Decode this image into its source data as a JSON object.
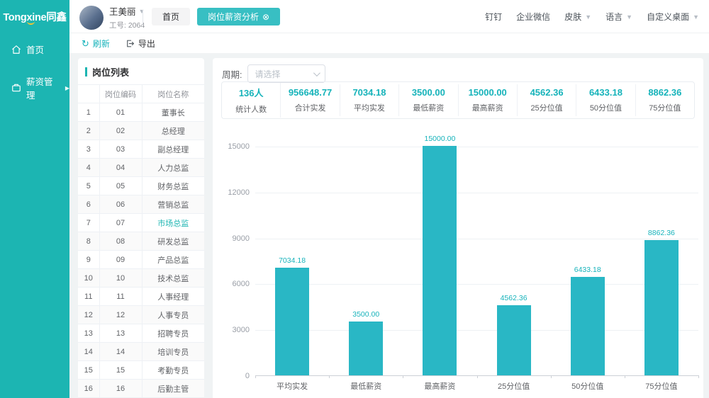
{
  "brand": {
    "logo": "Tongxine同鑫"
  },
  "header": {
    "user": {
      "name": "王美丽",
      "employee_id_label": "工号:",
      "employee_id": "2064"
    },
    "tabs": [
      {
        "name": "home",
        "label": "首页",
        "active": false,
        "closable": false
      },
      {
        "name": "position-salary-analysis",
        "label": "岗位薪资分析",
        "active": true,
        "closable": true
      }
    ],
    "menu": [
      {
        "name": "dingtalk",
        "label": "钉钉",
        "dropdown": false
      },
      {
        "name": "wecom",
        "label": "企业微信",
        "dropdown": false
      },
      {
        "name": "skin",
        "label": "皮肤",
        "dropdown": true
      },
      {
        "name": "language",
        "label": "语言",
        "dropdown": true
      },
      {
        "name": "custom-desktop",
        "label": "自定义桌面",
        "dropdown": true
      }
    ]
  },
  "sidebar": {
    "items": [
      {
        "name": "home",
        "label": "首页",
        "icon": "home-icon",
        "expandable": false
      },
      {
        "name": "salary-management",
        "label": "薪资管理",
        "icon": "wallet-icon",
        "expandable": true
      }
    ]
  },
  "toolbar": {
    "refresh_label": "刷新",
    "export_label": "导出"
  },
  "job_list": {
    "title": "岗位列表",
    "columns": [
      "",
      "岗位编码",
      "岗位名称"
    ],
    "rows": [
      {
        "index": "1",
        "code": "01",
        "name": "董事长",
        "selected": false
      },
      {
        "index": "2",
        "code": "02",
        "name": "总经理",
        "selected": false
      },
      {
        "index": "3",
        "code": "03",
        "name": "副总经理",
        "selected": false
      },
      {
        "index": "4",
        "code": "04",
        "name": "人力总监",
        "selected": false
      },
      {
        "index": "5",
        "code": "05",
        "name": "财务总监",
        "selected": false
      },
      {
        "index": "6",
        "code": "06",
        "name": "营销总监",
        "selected": false
      },
      {
        "index": "7",
        "code": "07",
        "name": "市场总监",
        "selected": true
      },
      {
        "index": "8",
        "code": "08",
        "name": "研发总监",
        "selected": false
      },
      {
        "index": "9",
        "code": "09",
        "name": "产品总监",
        "selected": false
      },
      {
        "index": "10",
        "code": "10",
        "name": "技术总监",
        "selected": false
      },
      {
        "index": "11",
        "code": "11",
        "name": "人事经理",
        "selected": false
      },
      {
        "index": "12",
        "code": "12",
        "name": "人事专员",
        "selected": false
      },
      {
        "index": "13",
        "code": "13",
        "name": "招聘专员",
        "selected": false
      },
      {
        "index": "14",
        "code": "14",
        "name": "培训专员",
        "selected": false
      },
      {
        "index": "15",
        "code": "15",
        "name": "考勤专员",
        "selected": false
      },
      {
        "index": "16",
        "code": "16",
        "name": "后勤主管",
        "selected": false
      }
    ]
  },
  "analysis": {
    "period_label": "周期:",
    "period_placeholder": "请选择",
    "stats": [
      {
        "value": "136人",
        "label": "统计人数"
      },
      {
        "value": "956648.77",
        "label": "合计实发"
      },
      {
        "value": "7034.18",
        "label": "平均实发"
      },
      {
        "value": "3500.00",
        "label": "最低薪资"
      },
      {
        "value": "15000.00",
        "label": "最高薪资"
      },
      {
        "value": "4562.36",
        "label": "25分位值"
      },
      {
        "value": "6433.18",
        "label": "50分位值"
      },
      {
        "value": "8862.36",
        "label": "75分位值"
      }
    ]
  },
  "chart_data": {
    "type": "bar",
    "categories": [
      "平均实发",
      "最低薪资",
      "最高薪资",
      "25分位值",
      "50分位值",
      "75分位值"
    ],
    "values": [
      7034.18,
      3500.0,
      15000.0,
      4562.36,
      6433.18,
      8862.36
    ],
    "value_labels": [
      "7034.18",
      "3500.00",
      "15000.00",
      "4562.36",
      "6433.18",
      "8862.36"
    ],
    "title": "",
    "xlabel": "",
    "ylabel": "",
    "ylim": [
      0,
      15000
    ],
    "yticks": [
      0,
      3000,
      6000,
      9000,
      12000,
      15000
    ],
    "grid": true,
    "legend": "none",
    "bar_color": "#29b7c5",
    "label_color": "#17b3bb"
  },
  "colors": {
    "primary_teal": "#1cb5b2",
    "bar_teal": "#29b7c5",
    "stat_teal": "#16b3ba",
    "page_bg": "#f0f3f4"
  }
}
